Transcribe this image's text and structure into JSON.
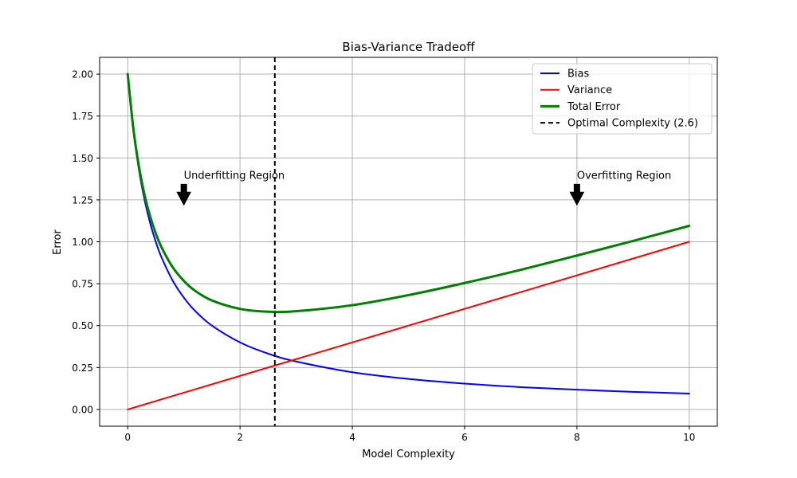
{
  "chart_data": {
    "type": "line",
    "title": "Bias-Variance Tradeoff",
    "xlabel": "Model Complexity",
    "ylabel": "Error",
    "xlim": [
      -0.5,
      10.5
    ],
    "ylim": [
      -0.1,
      2.1
    ],
    "xticks": [
      0,
      2,
      4,
      6,
      8,
      10
    ],
    "yticks": [
      0.0,
      0.25,
      0.5,
      0.75,
      1.0,
      1.25,
      1.5,
      1.75,
      2.0
    ],
    "xtick_labels": [
      "0",
      "2",
      "4",
      "6",
      "8",
      "10"
    ],
    "ytick_labels": [
      "0.00",
      "0.25",
      "0.50",
      "0.75",
      "1.00",
      "1.25",
      "1.50",
      "1.75",
      "2.00"
    ],
    "grid": true,
    "legend_position": "top-right",
    "series": [
      {
        "name": "Bias",
        "color": "#0000ff",
        "x": [
          0,
          0.1,
          0.2,
          0.3,
          0.4,
          0.5,
          0.6,
          0.8,
          1,
          1.2,
          1.5,
          2,
          2.5,
          3,
          4,
          5,
          6,
          7,
          8,
          9,
          10
        ],
        "values": [
          2.0,
          1.667,
          1.429,
          1.25,
          1.111,
          1.0,
          0.909,
          0.769,
          0.667,
          0.588,
          0.5,
          0.4,
          0.333,
          0.286,
          0.222,
          0.182,
          0.154,
          0.133,
          0.118,
          0.105,
          0.095
        ]
      },
      {
        "name": "Variance",
        "color": "#ff0000",
        "x": [
          0,
          10
        ],
        "values": [
          0.0,
          1.0
        ]
      },
      {
        "name": "Total Error",
        "color": "#008000",
        "x": [
          0,
          0.1,
          0.2,
          0.3,
          0.4,
          0.5,
          0.6,
          0.8,
          1,
          1.2,
          1.5,
          2,
          2.5,
          3,
          4,
          5,
          6,
          7,
          8,
          9,
          10
        ],
        "values": [
          2.0,
          1.677,
          1.449,
          1.28,
          1.151,
          1.05,
          0.969,
          0.849,
          0.767,
          0.708,
          0.65,
          0.6,
          0.583,
          0.586,
          0.622,
          0.682,
          0.754,
          0.833,
          0.918,
          1.005,
          1.095
        ]
      }
    ],
    "vline": {
      "name": "Optimal Complexity (2.6)",
      "x": 2.62,
      "color": "#000000"
    },
    "annotations": [
      {
        "text": "Underfitting Region",
        "text_x": 1.0,
        "text_y": 1.4,
        "arrow_y": 1.22
      },
      {
        "text": "Overfitting Region",
        "text_x": 8.0,
        "text_y": 1.4,
        "arrow_y": 1.22
      }
    ]
  }
}
